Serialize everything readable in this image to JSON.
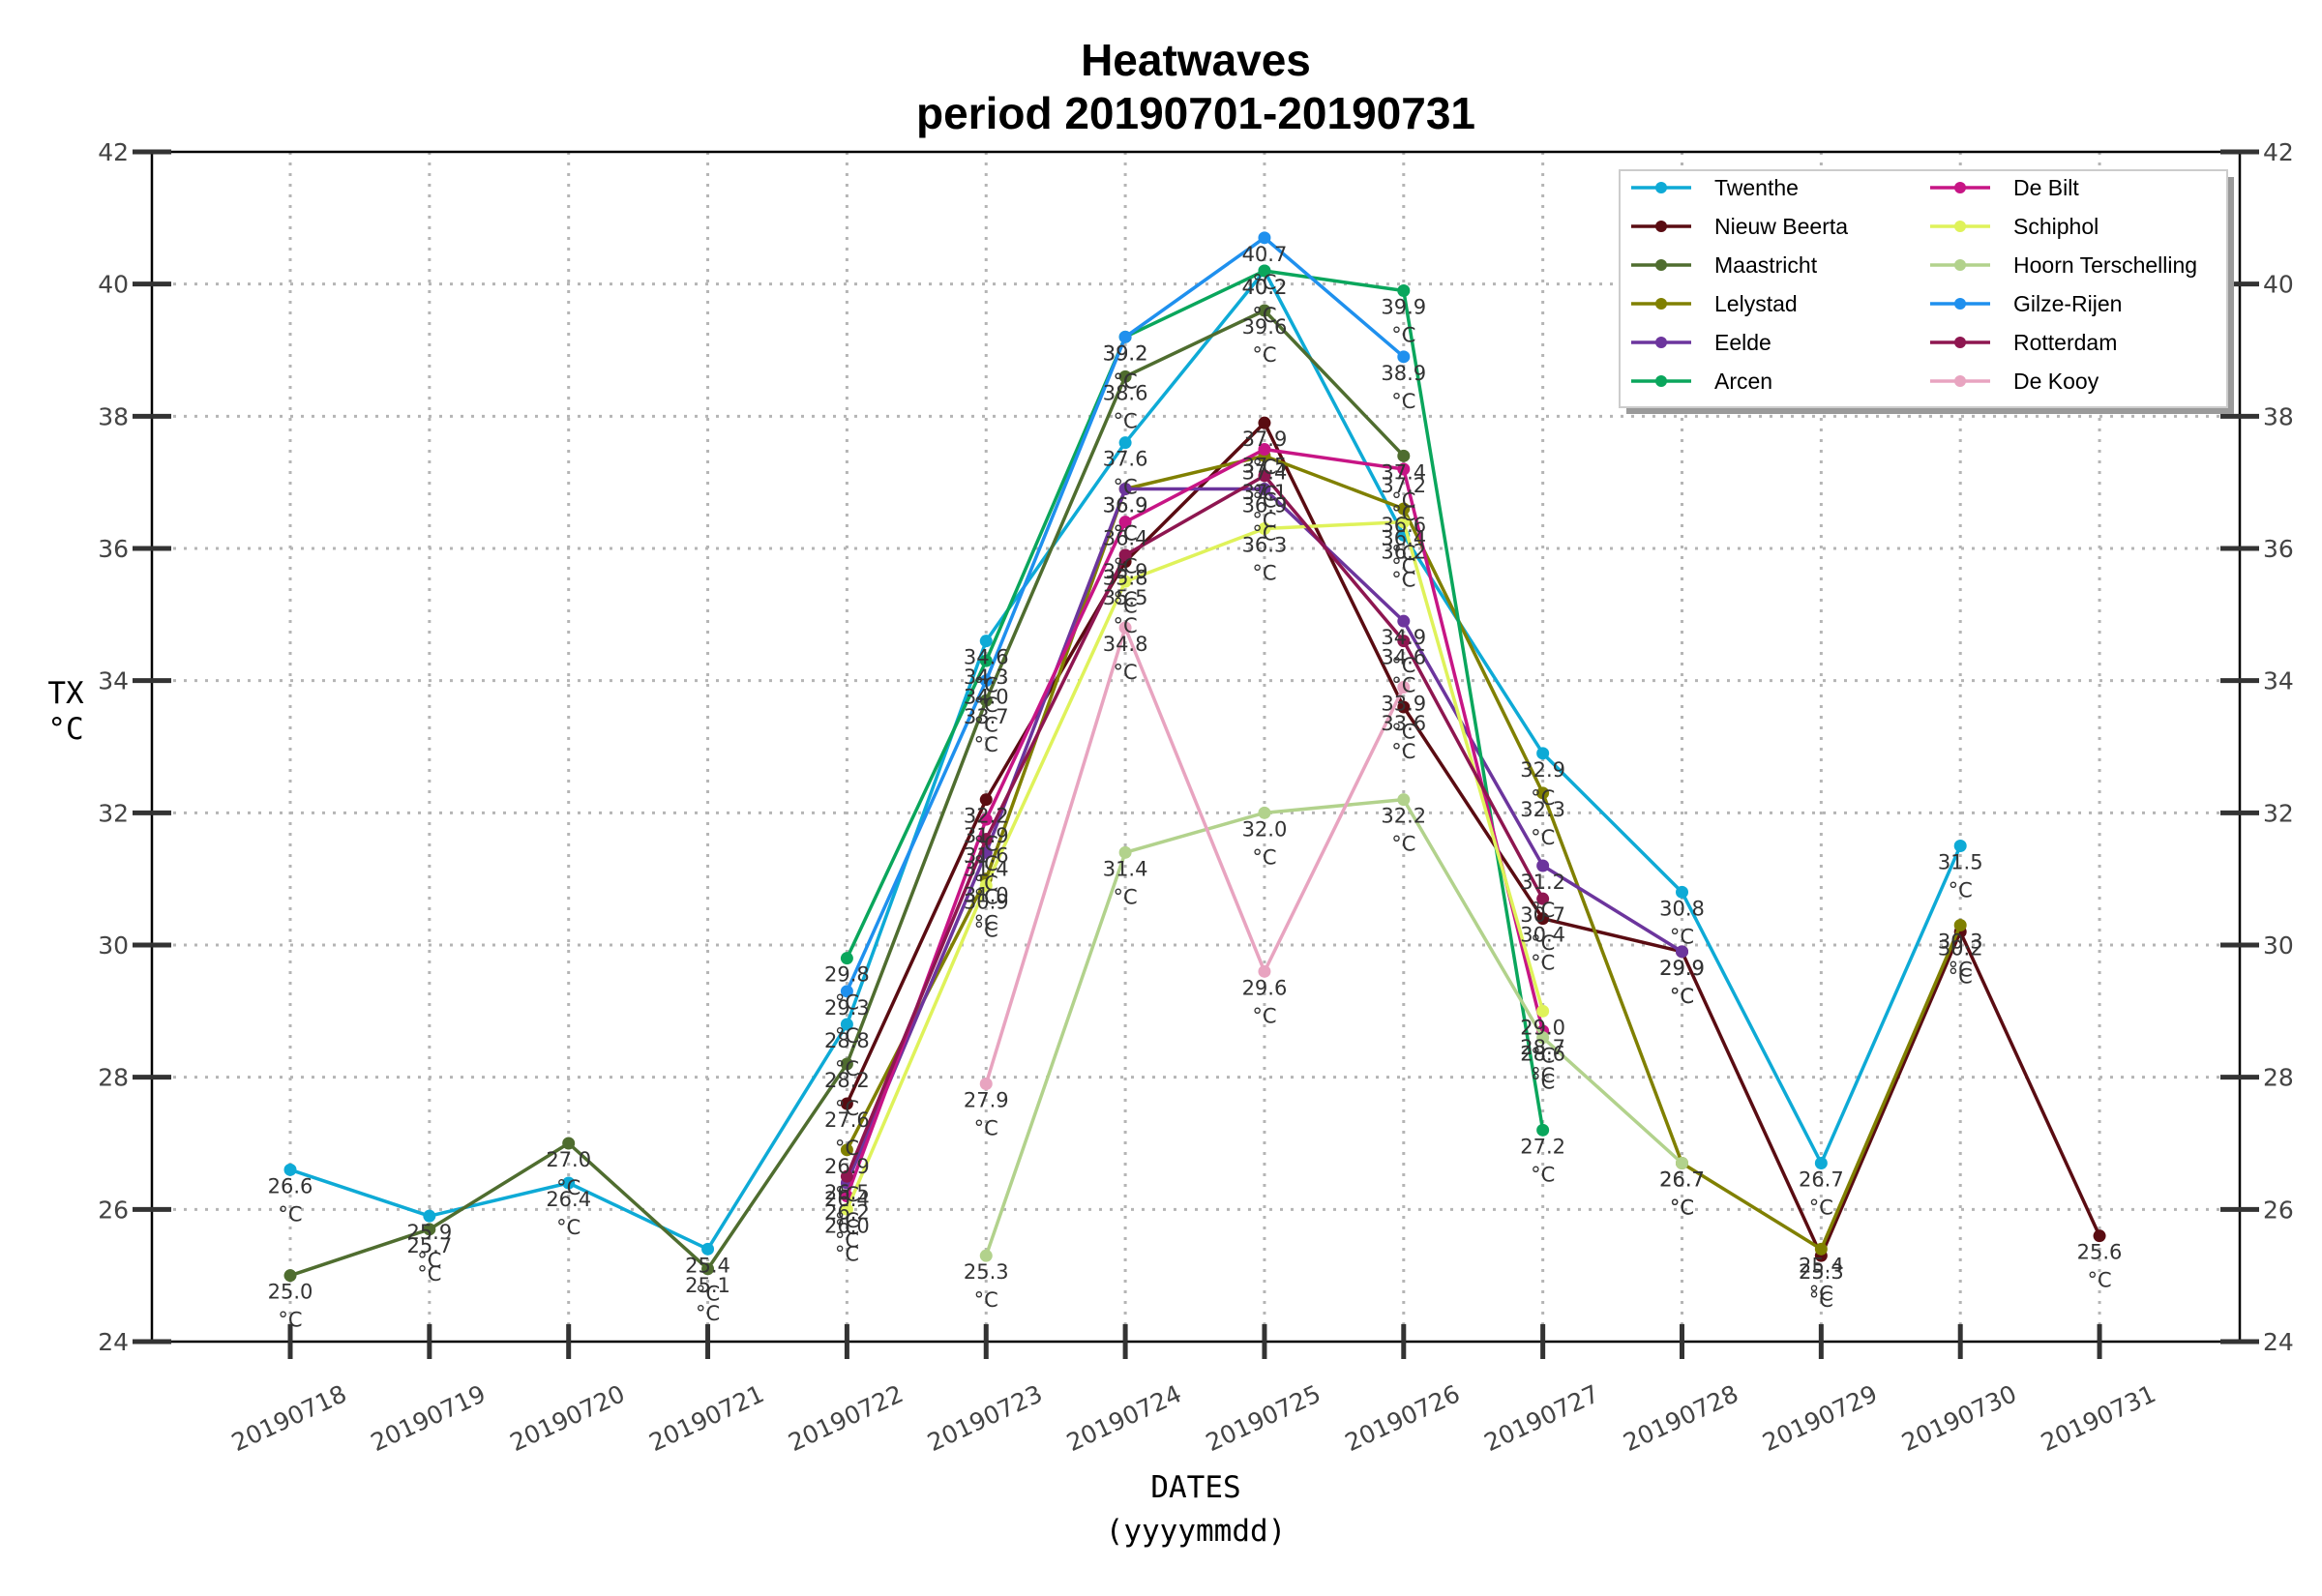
{
  "chart_data": {
    "type": "line",
    "title": "Heatwaves",
    "subtitle": "period 20190701-20190731",
    "xlabel": "DATES",
    "xlabel_unit": "(yyyymmdd)",
    "ylabel": "TX",
    "ylabel_unit": "°C",
    "value_unit": "°C",
    "ylim": [
      24,
      42
    ],
    "yticks": [
      24,
      26,
      28,
      30,
      32,
      34,
      36,
      38,
      40,
      42
    ],
    "categories": [
      "20190718",
      "20190719",
      "20190720",
      "20190721",
      "20190722",
      "20190723",
      "20190724",
      "20190725",
      "20190726",
      "20190727",
      "20190728",
      "20190729",
      "20190730",
      "20190731"
    ],
    "grid": true,
    "legend_position": "top-right",
    "series": [
      {
        "name": "Twenthe",
        "color": "#0eaad6",
        "values": [
          26.6,
          25.9,
          26.4,
          25.4,
          28.8,
          34.6,
          37.6,
          40.2,
          36.2,
          32.9,
          30.8,
          26.7,
          31.5,
          null
        ]
      },
      {
        "name": "Nieuw Beerta",
        "color": "#5a0c12",
        "values": [
          null,
          null,
          null,
          null,
          27.6,
          32.2,
          35.8,
          37.9,
          33.6,
          30.4,
          29.9,
          25.3,
          30.2,
          25.6
        ]
      },
      {
        "name": "Maastricht",
        "color": "#4f6d2f",
        "values": [
          25.0,
          25.7,
          27.0,
          25.1,
          28.2,
          33.7,
          38.6,
          39.6,
          37.4,
          null,
          null,
          null,
          null,
          null
        ]
      },
      {
        "name": "Lelystad",
        "color": "#808000",
        "values": [
          null,
          null,
          null,
          null,
          26.9,
          31.0,
          36.9,
          37.4,
          36.6,
          32.3,
          26.7,
          25.4,
          30.3,
          null
        ]
      },
      {
        "name": "Eelde",
        "color": "#6c359d",
        "values": [
          null,
          null,
          null,
          null,
          26.4,
          31.4,
          36.9,
          36.9,
          34.9,
          31.2,
          29.9,
          null,
          null,
          null
        ]
      },
      {
        "name": "Arcen",
        "color": "#0aa65c",
        "values": [
          null,
          null,
          null,
          null,
          29.8,
          34.3,
          39.2,
          40.2,
          39.9,
          27.2,
          null,
          null,
          null,
          null
        ]
      },
      {
        "name": "De Bilt",
        "color": "#c71585",
        "values": [
          null,
          null,
          null,
          null,
          26.2,
          31.9,
          36.4,
          37.5,
          37.2,
          28.7,
          null,
          null,
          null,
          null
        ]
      },
      {
        "name": "Schiphol",
        "color": "#dff25a",
        "values": [
          null,
          null,
          null,
          null,
          26.0,
          30.9,
          35.5,
          36.3,
          36.4,
          29.0,
          null,
          null,
          null,
          null
        ]
      },
      {
        "name": "Hoorn Terschelling",
        "color": "#b2d28c",
        "values": [
          null,
          null,
          null,
          null,
          null,
          25.3,
          31.4,
          32.0,
          32.2,
          28.6,
          26.7,
          null,
          null,
          null
        ]
      },
      {
        "name": "Gilze-Rijen",
        "color": "#1f90ee",
        "values": [
          null,
          null,
          null,
          null,
          29.3,
          34.0,
          39.2,
          40.7,
          38.9,
          null,
          null,
          null,
          null,
          null
        ]
      },
      {
        "name": "Rotterdam",
        "color": "#8e1650",
        "values": [
          null,
          null,
          null,
          null,
          26.5,
          31.6,
          35.9,
          37.1,
          34.6,
          30.7,
          null,
          null,
          null,
          null
        ]
      },
      {
        "name": "De Kooy",
        "color": "#e8a4c0",
        "values": [
          null,
          null,
          null,
          null,
          null,
          27.9,
          34.8,
          29.6,
          33.9,
          null,
          null,
          null,
          null,
          null
        ]
      }
    ]
  }
}
